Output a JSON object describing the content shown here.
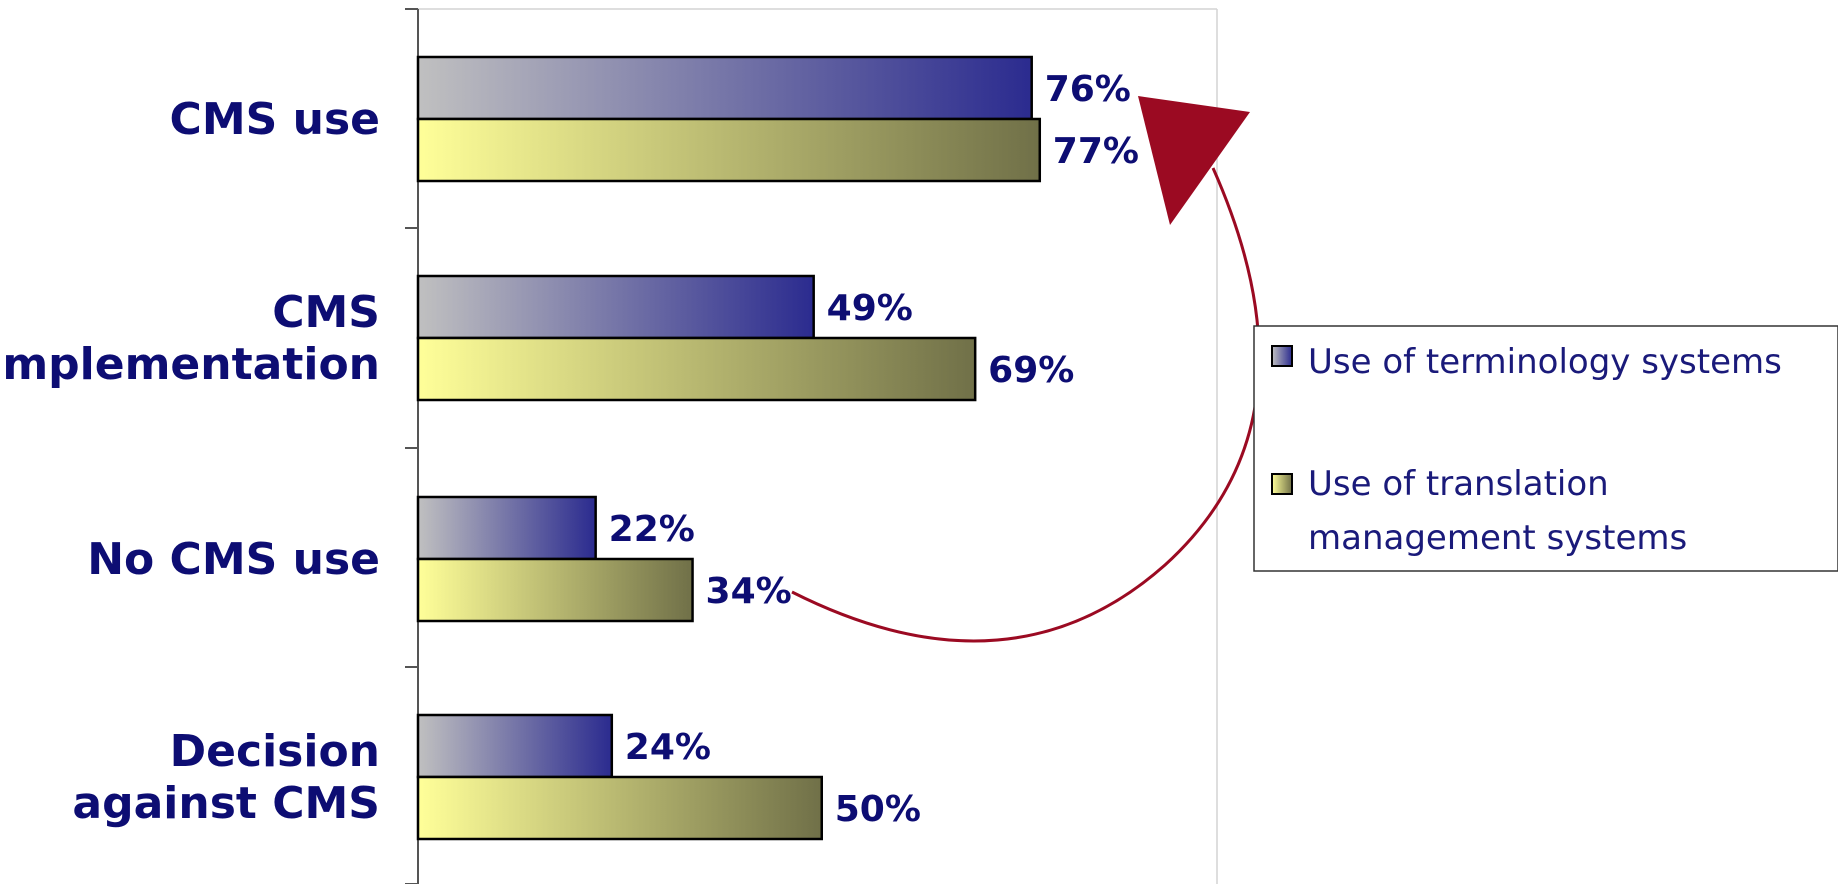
{
  "chart_data": {
    "type": "bar",
    "orientation": "horizontal",
    "categories": [
      [
        "CMS use"
      ],
      [
        "CMS",
        "implementation"
      ],
      [
        "No CMS use"
      ],
      [
        "Decision",
        "against CMS"
      ]
    ],
    "series": [
      {
        "name": "Use of terminology systems",
        "values": [
          76,
          49,
          22,
          24
        ],
        "color_start": "#c0c0c0",
        "color_end": "#2b2b8f"
      },
      {
        "name": "Use of translation management systems",
        "values": [
          77,
          69,
          34,
          50
        ],
        "color_start": "#ffff99",
        "color_end": "#707048"
      }
    ],
    "value_labels": [
      [
        "76%",
        "49%",
        "22%",
        "24%"
      ],
      [
        "77%",
        "69%",
        "34%",
        "50%"
      ]
    ],
    "legend_lines": [
      [
        "Use of terminology systems"
      ],
      [
        "Use of translation",
        "management systems"
      ]
    ],
    "legend_position": "right",
    "annotation": {
      "type": "curved-arrow",
      "from": "No CMS use / translation management",
      "to": "CMS use"
    },
    "accent_color": "#9b0a22",
    "label_color": "#0d0d73",
    "xlim": [
      0,
      100
    ],
    "grid": false
  }
}
